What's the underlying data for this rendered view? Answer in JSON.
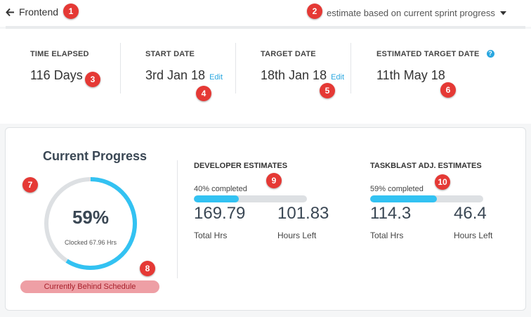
{
  "header": {
    "back_label": "Frontend",
    "mode_label": "estimate based on current sprint progress"
  },
  "stats": [
    {
      "label": "TIME ELAPSED",
      "value": "116 Days"
    },
    {
      "label": "START DATE",
      "value": "3rd Jan 18",
      "edit": "Edit"
    },
    {
      "label": "TARGET DATE",
      "value": "18th Jan 18",
      "edit": "Edit"
    },
    {
      "label": "ESTIMATED TARGET DATE",
      "value": "11th May 18",
      "help": "?"
    }
  ],
  "progress": {
    "title": "Current Progress",
    "percent_label": "59%",
    "percent": 0.59,
    "clocked": "Clocked 67.96 Hrs",
    "status": "Currently Behind Schedule"
  },
  "developer": {
    "title": "DEVELOPER ESTIMATES",
    "pct_label": "40% completed",
    "fraction": 0.4,
    "total": "169.79",
    "total_label": "Total Hrs",
    "left": "101.83",
    "left_label": "Hours Left"
  },
  "taskblast": {
    "title": "TASKBLAST ADJ. ESTIMATES",
    "pct_label": "59% completed",
    "fraction": 0.59,
    "total": "114.3",
    "total_label": "Total Hrs",
    "left": "46.4",
    "left_label": "Hours Left"
  },
  "badges": [
    "1",
    "2",
    "3",
    "4",
    "5",
    "6",
    "7",
    "8",
    "9",
    "10"
  ],
  "colors": {
    "accent": "#33c2f2",
    "link": "#2aa7e0",
    "badge": "#e53935",
    "status_bg": "#ee9fa5",
    "status_text": "#a8202b"
  }
}
